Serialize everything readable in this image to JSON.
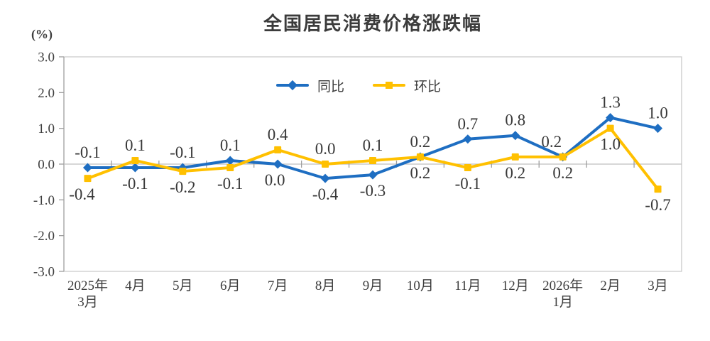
{
  "chart": {
    "unit_label": "(%)"
  },
  "chart_data": {
    "type": "line",
    "title": "全国居民消费价格涨跌幅",
    "ylabel": "(%)",
    "xlabel": "",
    "ylim": [
      -3.0,
      3.0
    ],
    "ytick_step": 1.0,
    "ytick_labels": [
      "3.0",
      "2.0",
      "1.0",
      "0.0",
      "-1.0",
      "-2.0",
      "-3.0"
    ],
    "grid": false,
    "zero_axis_line": true,
    "legend_position": "top-center",
    "categories": [
      [
        "2025年",
        "3月"
      ],
      [
        "4月"
      ],
      [
        "5月"
      ],
      [
        "6月"
      ],
      [
        "7月"
      ],
      [
        "8月"
      ],
      [
        "9月"
      ],
      [
        "10月"
      ],
      [
        "11月"
      ],
      [
        "12月"
      ],
      [
        "2026年",
        "1月"
      ],
      [
        "2月"
      ],
      [
        "3月"
      ]
    ],
    "series": [
      {
        "name": "同比",
        "id": "yoy",
        "color": "#1e6ec2",
        "marker": "diamond",
        "values": [
          -0.1,
          -0.1,
          -0.1,
          0.1,
          0.0,
          -0.4,
          -0.3,
          0.2,
          0.7,
          0.8,
          0.2,
          1.3,
          1.0
        ],
        "label_side": [
          "above",
          "below",
          "above",
          "above",
          "below",
          "below",
          "below",
          "below",
          "above",
          "above",
          "above",
          "above",
          "above"
        ],
        "label_dx": [
          0,
          0,
          0,
          0,
          -4,
          0,
          0,
          0,
          0,
          0,
          -16,
          0,
          0
        ]
      },
      {
        "name": "环比",
        "id": "mom",
        "color": "#ffc000",
        "marker": "square",
        "values": [
          -0.4,
          0.1,
          -0.2,
          -0.1,
          0.4,
          0.0,
          0.1,
          0.2,
          -0.1,
          0.2,
          0.2,
          1.0,
          -0.7
        ],
        "label_side": [
          "below",
          "above",
          "below",
          "below",
          "above",
          "above",
          "above",
          "above",
          "below",
          "below",
          "below",
          "below",
          "below"
        ],
        "label_dx": [
          -8,
          0,
          0,
          0,
          0,
          0,
          0,
          0,
          0,
          0,
          0,
          0,
          0
        ]
      }
    ]
  }
}
